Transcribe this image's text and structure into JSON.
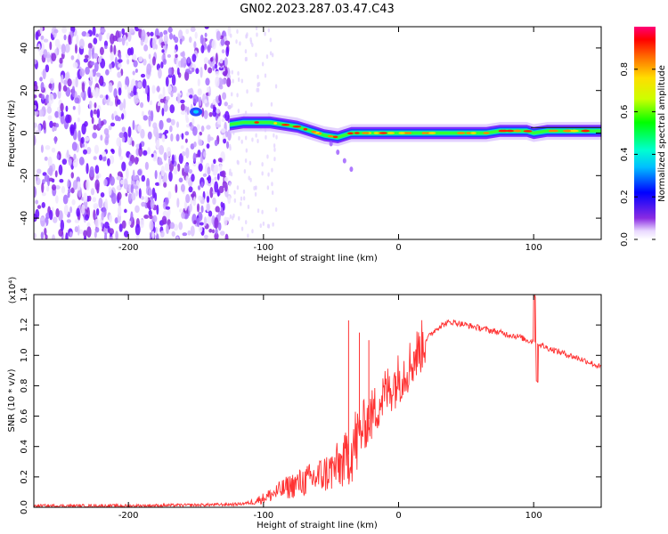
{
  "title": "GN02.2023.287.03.47.C43",
  "chart_data": [
    {
      "type": "heatmap",
      "xlabel": "Height of straight line (km)",
      "ylabel": "Frequency (Hz)",
      "xlim": [
        -270,
        150
      ],
      "ylim": [
        -50,
        50
      ],
      "x_ticks": [
        -200,
        -100,
        0,
        100
      ],
      "y_ticks": [
        -40,
        -20,
        0,
        20,
        40
      ],
      "colorbar": {
        "label": "Normalized spectral amplitude",
        "range": [
          0.0,
          1.0
        ],
        "ticks": [
          0.0,
          0.2,
          0.4,
          0.6,
          0.8
        ],
        "tick_labels": [
          "0.0",
          "0.2",
          "0.4",
          "0.6",
          "0.8"
        ]
      },
      "ridge": {
        "x": [
          -125,
          -115,
          -105,
          -95,
          -85,
          -75,
          -65,
          -55,
          -45,
          -35,
          -25,
          -15,
          -5,
          5,
          15,
          25,
          35,
          45,
          55,
          65,
          75,
          85,
          95,
          100,
          110,
          120,
          130,
          140,
          150
        ],
        "freq": [
          4,
          5,
          5,
          5,
          4,
          3,
          1,
          -1,
          -2,
          0,
          0,
          0,
          0,
          0,
          0,
          0,
          0,
          0,
          0,
          0,
          1,
          1,
          1,
          0,
          1,
          1,
          1,
          1,
          1
        ]
      },
      "noise_region_x": [
        -270,
        -125
      ],
      "cluster": {
        "x": -150,
        "freq": 10
      }
    },
    {
      "type": "line",
      "xlabel": "Height of straight line (km)",
      "ylabel": "SNR (10 * v/v)",
      "y_multiplier": "(x10⁴)",
      "xlim": [
        -270,
        150
      ],
      "ylim": [
        0,
        1.4
      ],
      "x_ticks": [
        -200,
        -100,
        0,
        100
      ],
      "y_ticks": [
        0.0,
        0.2,
        0.4,
        0.6,
        0.8,
        1.0,
        1.2,
        1.4
      ],
      "y_tick_labels": [
        "0.0",
        "0.2",
        "0.4",
        "0.6",
        "0.8",
        "1.0",
        "1.2",
        "1.4"
      ],
      "color": "#ff3333",
      "series": [
        {
          "x": [
            -270,
            -200,
            -150,
            -120,
            -110,
            -100,
            -90,
            -80,
            -70,
            -60,
            -50,
            -40,
            -35,
            -30,
            -25,
            -20,
            -15,
            -10,
            -5,
            0,
            5,
            10,
            15,
            20,
            25,
            30,
            35,
            40,
            50,
            60,
            70,
            80,
            90,
            95,
            100,
            105,
            110,
            120,
            130,
            140,
            150
          ],
          "values": [
            0.01,
            0.01,
            0.015,
            0.02,
            0.03,
            0.06,
            0.1,
            0.14,
            0.17,
            0.2,
            0.24,
            0.3,
            0.38,
            0.45,
            0.55,
            0.6,
            0.68,
            0.75,
            0.8,
            0.85,
            0.9,
            0.96,
            1.03,
            1.1,
            1.15,
            1.19,
            1.21,
            1.22,
            1.2,
            1.18,
            1.16,
            1.14,
            1.12,
            1.1,
            1.09,
            1.07,
            1.05,
            1.02,
            0.99,
            0.96,
            0.92
          ]
        }
      ]
    }
  ]
}
